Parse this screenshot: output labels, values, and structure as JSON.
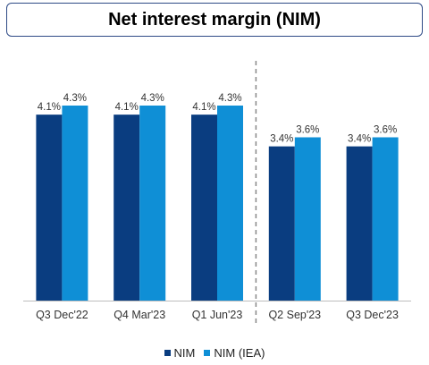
{
  "title": "Net interest margin (NIM)",
  "colors": {
    "nim": "#0a3d80",
    "nim_iea": "#0f8fd6",
    "divider": "#888888",
    "axis": "#bdbdbd"
  },
  "chart_data": {
    "type": "bar",
    "title": "Net interest margin (NIM)",
    "xlabel": "",
    "ylabel": "",
    "categories": [
      "Q3 Dec'22",
      "Q4 Mar'23",
      "Q1 Jun'23",
      "Q2 Sep'23",
      "Q3 Dec'23"
    ],
    "series": [
      {
        "name": "NIM",
        "values": [
          4.1,
          4.1,
          4.1,
          3.4,
          3.4
        ],
        "labels": [
          "4.1%",
          "4.1%",
          "4.1%",
          "3.4%",
          "3.4%"
        ]
      },
      {
        "name": "NIM (IEA)",
        "values": [
          4.3,
          4.3,
          4.3,
          3.6,
          3.6
        ],
        "labels": [
          "4.3%",
          "4.3%",
          "4.3%",
          "3.6%",
          "3.6%"
        ]
      }
    ],
    "ylim": [
      0,
      4.3
    ],
    "grid": false,
    "legend": "bottom-center",
    "divider_after_category": 2
  }
}
